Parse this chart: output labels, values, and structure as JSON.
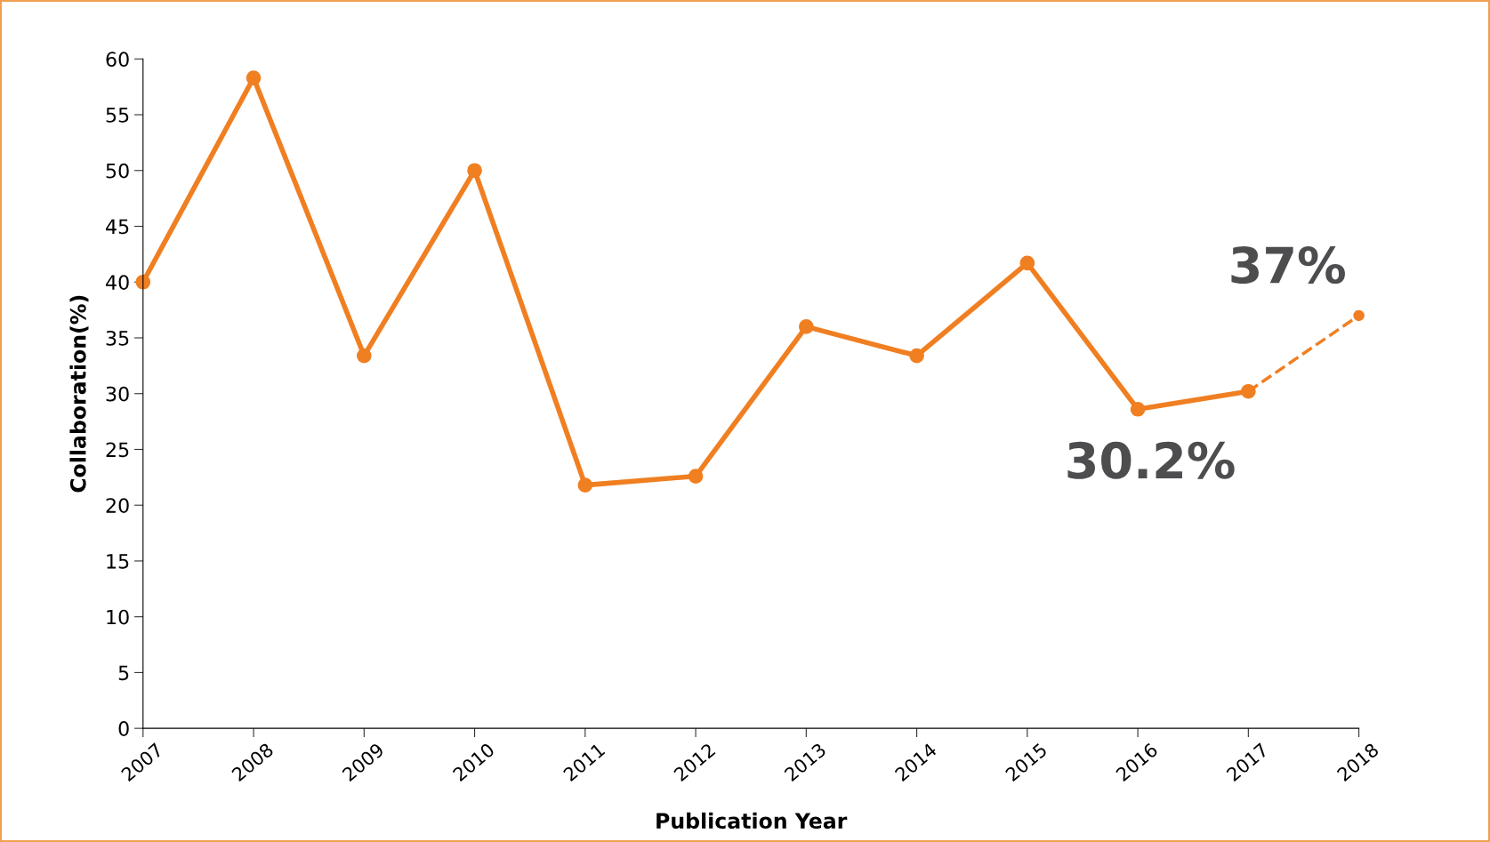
{
  "chart_data": {
    "type": "line",
    "xlabel": "Publication Year",
    "ylabel": "Collaboration(%)",
    "x": [
      2007,
      2008,
      2009,
      2010,
      2011,
      2012,
      2013,
      2014,
      2015,
      2016,
      2017,
      2018
    ],
    "series": [
      {
        "color": "#f07f22",
        "line_style": "solid",
        "values": [
          40.0,
          58.3,
          33.4,
          50.0,
          21.8,
          22.6,
          36.0,
          33.4,
          41.7,
          28.6,
          30.2,
          null
        ]
      },
      {
        "color": "#f07f22",
        "line_style": "dashed",
        "values": [
          null,
          null,
          null,
          null,
          null,
          null,
          null,
          null,
          null,
          null,
          30.2,
          37.0
        ]
      }
    ],
    "xlim": [
      2007,
      2018
    ],
    "xticks": [
      2007,
      2008,
      2009,
      2010,
      2011,
      2012,
      2013,
      2014,
      2015,
      2016,
      2017,
      2018
    ],
    "ylim": [
      0,
      60
    ],
    "yticks": [
      0,
      5,
      10,
      15,
      20,
      25,
      30,
      35,
      40,
      45,
      50,
      55,
      60
    ],
    "marker": "circle",
    "grid": false,
    "legend": false,
    "annotations": [
      {
        "text": "37%",
        "x": 2018,
        "y": 37.0
      },
      {
        "text": "30.2%",
        "x": 2017,
        "y": 30.2
      }
    ]
  }
}
